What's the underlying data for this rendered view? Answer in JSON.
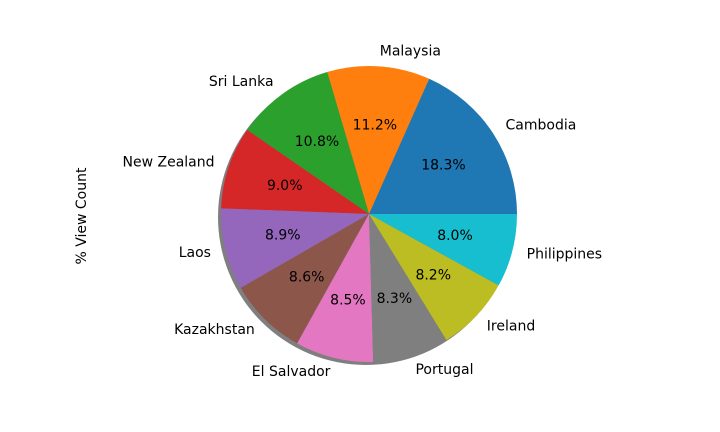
{
  "chart_data": {
    "type": "pie",
    "ylabel": "% View Count",
    "shadow": true,
    "start_angle_deg": 0,
    "direction": "counterclockwise",
    "slices": [
      {
        "label": "Cambodia",
        "value": 18.3,
        "pct_label": "18.3%",
        "color": "#1f77b4"
      },
      {
        "label": "Malaysia",
        "value": 11.2,
        "pct_label": "11.2%",
        "color": "#ff7f0e"
      },
      {
        "label": "Sri Lanka",
        "value": 10.8,
        "pct_label": "10.8%",
        "color": "#2ca02c"
      },
      {
        "label": "New Zealand",
        "value": 9.0,
        "pct_label": "9.0%",
        "color": "#d62728"
      },
      {
        "label": "Laos",
        "value": 8.9,
        "pct_label": "8.9%",
        "color": "#9467bd"
      },
      {
        "label": "Kazakhstan",
        "value": 8.6,
        "pct_label": "8.6%",
        "color": "#8c564b"
      },
      {
        "label": "El Salvador",
        "value": 8.5,
        "pct_label": "8.5%",
        "color": "#e377c2"
      },
      {
        "label": "Portugal",
        "value": 8.3,
        "pct_label": "8.3%",
        "color": "#7f7f7f"
      },
      {
        "label": "Ireland",
        "value": 8.2,
        "pct_label": "8.2%",
        "color": "#bcbd22"
      },
      {
        "label": "Philippines",
        "value": 8.0,
        "pct_label": "8.0%",
        "color": "#17becf"
      }
    ]
  }
}
